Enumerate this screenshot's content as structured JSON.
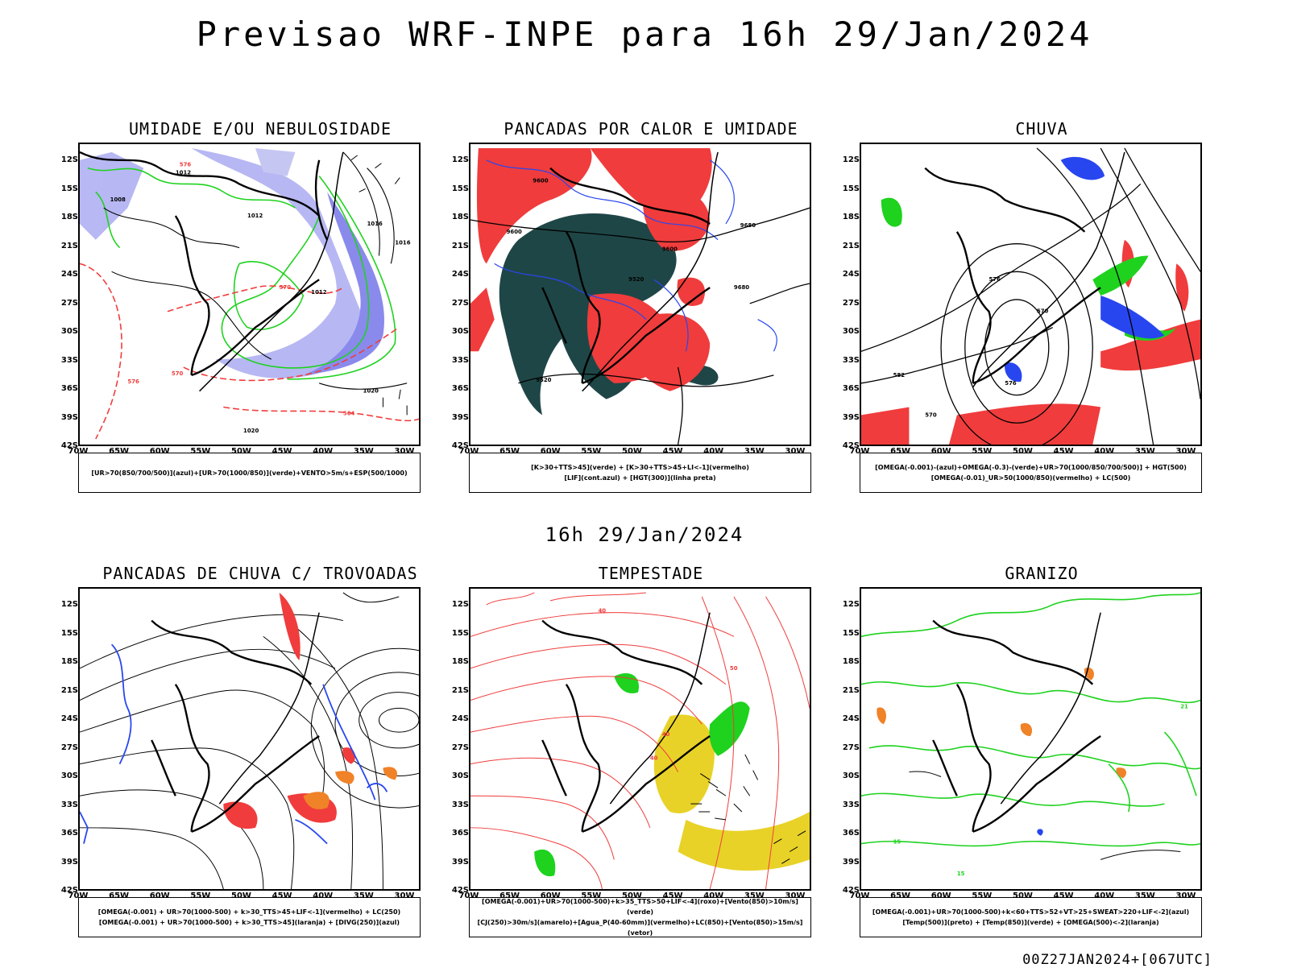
{
  "title": "Previsao WRF-INPE  para 16h 29/Jan/2024",
  "mid_title": "16h 29/Jan/2024",
  "footer": "00Z27JAN2024+[067UTC]",
  "lat_labels": [
    "12S",
    "15S",
    "18S",
    "21S",
    "24S",
    "27S",
    "30S",
    "33S",
    "36S",
    "39S",
    "42S"
  ],
  "lon_labels": [
    "70W",
    "65W",
    "60W",
    "55W",
    "50W",
    "45W",
    "40W",
    "35W",
    "30W"
  ],
  "colors": {
    "red": "#f03c3c",
    "green": "#1ed21e",
    "blue": "#2846f0",
    "dark_teal": "#1f4646",
    "yellow": "#e8d228",
    "orange": "#f08228",
    "lavender": "#a0a0f0",
    "magenta": "#c832c8"
  },
  "panels": [
    {
      "title": "UMIDADE E/OU NEBULOSIDADE",
      "legend": [
        "[UR>70(850/700/500)](azul)+[UR>70(1000/850)](verde)+VENTO>5m/s+ESP(500/1000)"
      ]
    },
    {
      "title": "PANCADAS POR CALOR E UMIDADE",
      "legend": [
        "[K>30+TTS>45](verde) + [K>30+TTS>45+LI<-1](vermelho)",
        "[LIF](cont.azul) + [HGT(300)](linha preta)"
      ]
    },
    {
      "title": "CHUVA",
      "legend": [
        "[OMEGA(-0.001)-(azul)+OMEGA(-0.3)-(verde)+UR>70(1000/850/700/500)] + HGT(500)",
        "[OMEGA(-0.01)_UR>50(1000/850)(vermelho) + LC(500)"
      ]
    },
    {
      "title": "PANCADAS DE CHUVA C/ TROVOADAS",
      "legend": [
        "[OMEGA(-0.001) + UR>70(1000-500) + k>30_TTS>45+LIF<-1](vermelho) + LC(250)",
        "[OMEGA(-0.001) + UR>70(1000-500) + k>30_TTS>45](laranja) + [DIVG(250)](azul)"
      ]
    },
    {
      "title": "TEMPESTADE",
      "legend": [
        "[OMEGA(-0.001)+UR>70(1000-500)+k>35_TTS>50+LIF<-4](roxo)+[Vento(850)>10m/s](verde)",
        "[CJ(250)>30m/s](amarelo)+[Agua_P(40-60mm)](vermelho)+LC(850)+[Vento(850)>15m/s](vetor)"
      ]
    },
    {
      "title": "GRANIZO",
      "legend": [
        "[OMEGA(-0.001)+UR>70(1000-500)+k<60+TTS>52+VT>25+SWEAT>220+LIF<-2](azul)",
        "[Temp(500)](preto) + [Temp(850)](verde) + [OMEGA(500)<-2](laranja)"
      ]
    }
  ],
  "contour_labels": {
    "p1": [
      "1012",
      "1008",
      "1016",
      "1012",
      "1012",
      "1016",
      "1020",
      "1020",
      "576",
      "570",
      "564",
      "576",
      "570"
    ],
    "p2": [
      "9600",
      "9600",
      "9520",
      "9680",
      "9680",
      "9600",
      "9520"
    ],
    "p3": [
      "576",
      "582",
      "576",
      "570",
      "570"
    ],
    "p5": [
      "40",
      "50",
      "40",
      "40"
    ],
    "p6": [
      "15",
      "15",
      "21"
    ]
  }
}
